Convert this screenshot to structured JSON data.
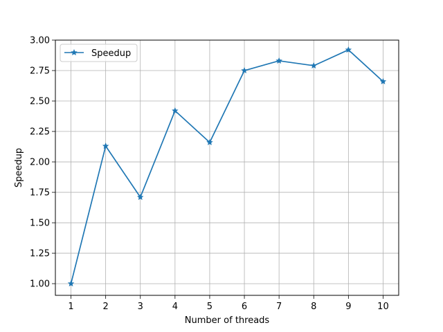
{
  "chart_data": {
    "type": "line",
    "title": "",
    "xlabel": "Number of threads",
    "ylabel": "Speedup",
    "x": [
      1,
      2,
      3,
      4,
      5,
      6,
      7,
      8,
      9,
      10
    ],
    "series": [
      {
        "name": "Speedup",
        "values": [
          1.0,
          2.13,
          1.71,
          2.42,
          2.16,
          2.75,
          2.83,
          2.79,
          2.92,
          2.66
        ],
        "color": "#1f77b4",
        "marker": "star"
      }
    ],
    "xticks": [
      1,
      2,
      3,
      4,
      5,
      6,
      7,
      8,
      9,
      10
    ],
    "xtick_labels": [
      "1",
      "2",
      "3",
      "4",
      "5",
      "6",
      "7",
      "8",
      "9",
      "10"
    ],
    "yticks": [
      1.0,
      1.25,
      1.5,
      1.75,
      2.0,
      2.25,
      2.5,
      2.75,
      3.0
    ],
    "ytick_labels": [
      "1.00",
      "1.25",
      "1.50",
      "1.75",
      "2.00",
      "2.25",
      "2.50",
      "2.75",
      "3.00"
    ],
    "xlim": [
      0.55,
      10.45
    ],
    "ylim": [
      0.904,
      3.0
    ],
    "grid": true,
    "legend": "upper-left"
  }
}
